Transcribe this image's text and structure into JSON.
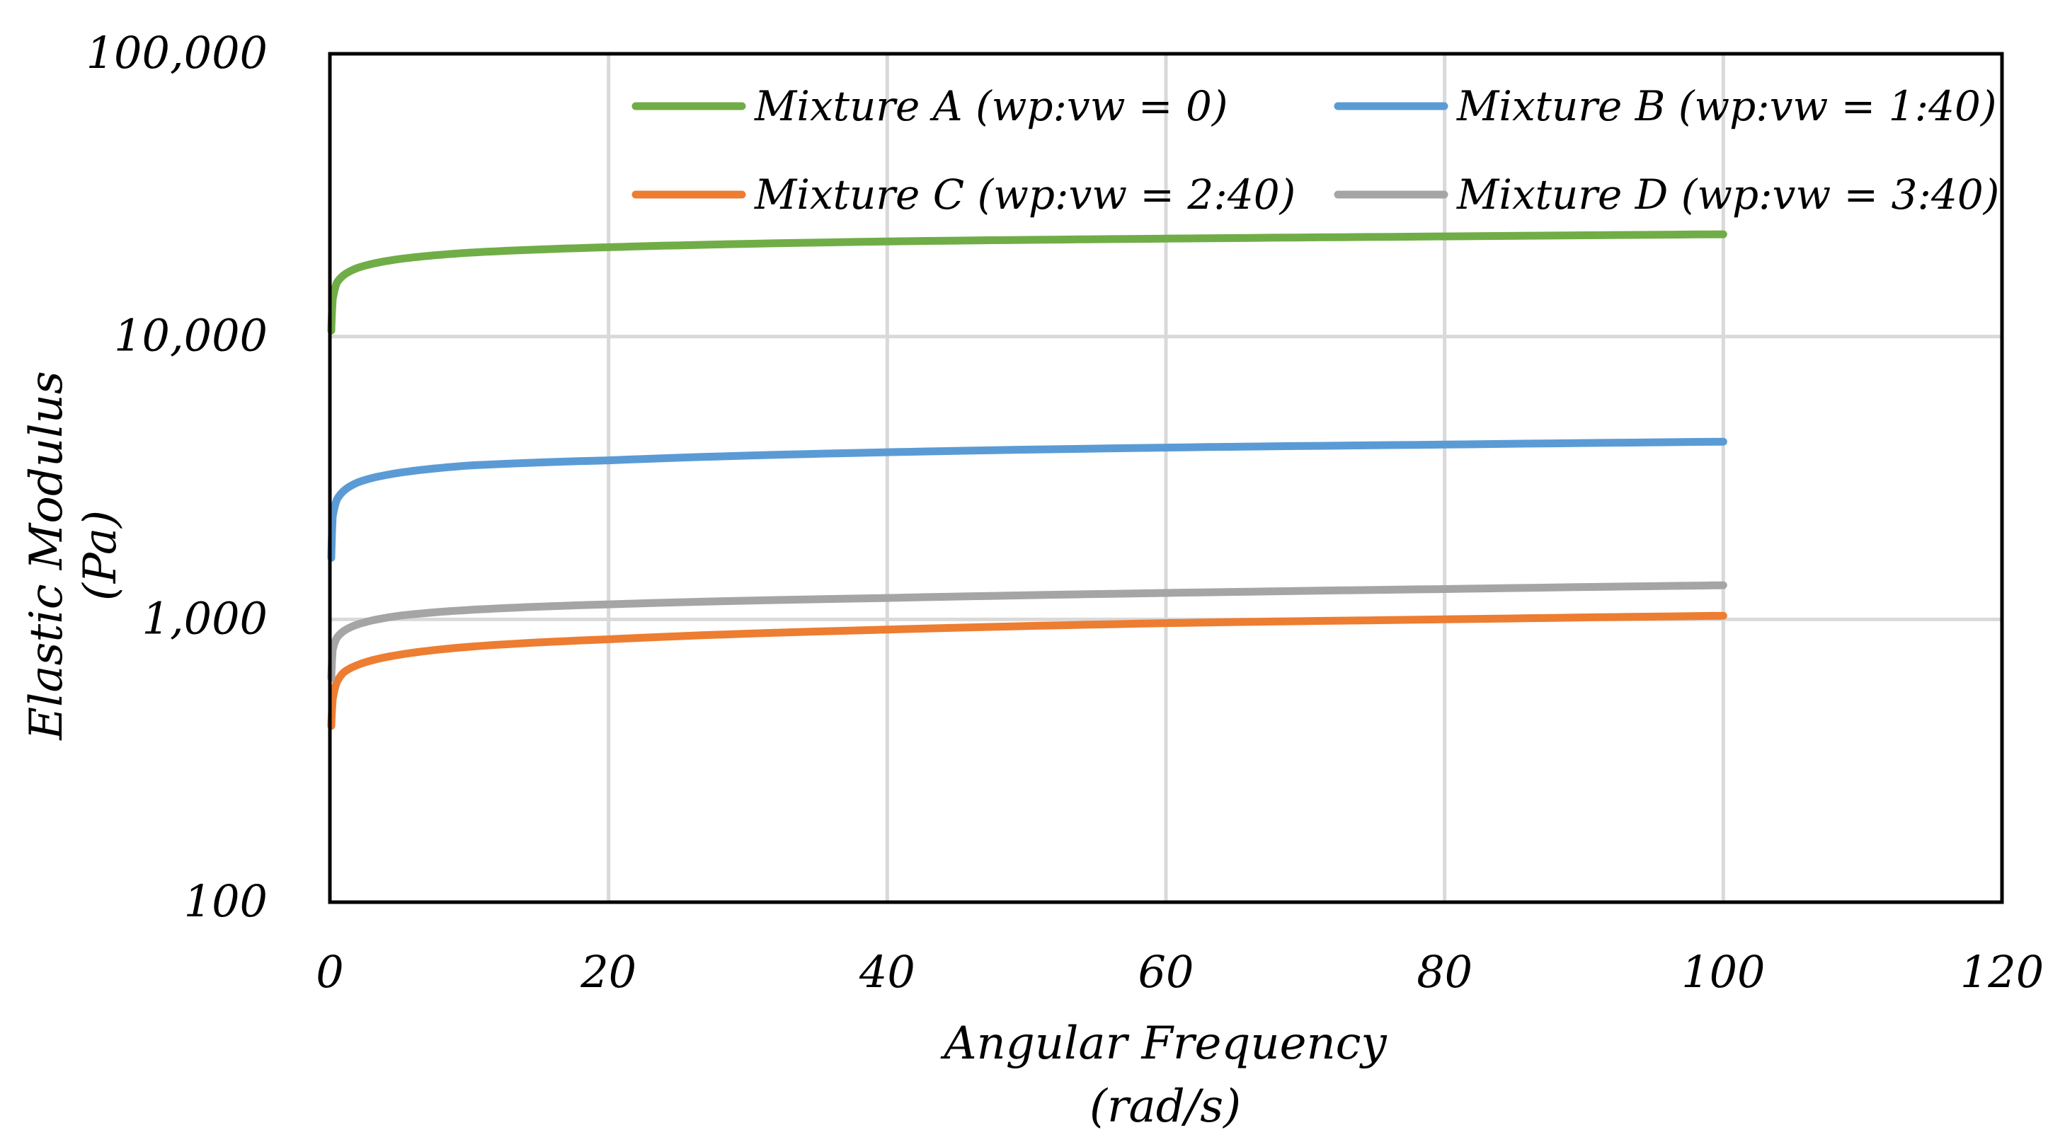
{
  "chart_data": {
    "type": "line",
    "title": "",
    "xlabel": [
      "Angular Frequency",
      "(rad/s)"
    ],
    "ylabel": [
      "Elastic Modulus",
      "(Pa)"
    ],
    "xlim": [
      0,
      120
    ],
    "ylim": [
      100,
      100000
    ],
    "yscale": "log",
    "x_ticks": [
      "0",
      "20",
      "40",
      "60",
      "80",
      "100",
      "120"
    ],
    "y_ticks": [
      "100",
      "1,000",
      "10,000",
      "100,000"
    ],
    "grid": true,
    "legend_position": "top",
    "series": [
      {
        "name": "Mixture A (wp:vw = 0)",
        "color": "#70ad47",
        "x": [
          0.1,
          0.2,
          0.5,
          1,
          2,
          5,
          10,
          20,
          40,
          60,
          80,
          100
        ],
        "y": [
          10500,
          13500,
          15500,
          16500,
          17500,
          18800,
          19800,
          20700,
          21700,
          22200,
          22600,
          23000
        ]
      },
      {
        "name": "Mixture B (wp:vw = 1:40)",
        "color": "#5b9bd5",
        "x": [
          0.1,
          0.2,
          0.5,
          1,
          2,
          5,
          10,
          20,
          40,
          60,
          80,
          100
        ],
        "y": [
          1650,
          2300,
          2650,
          2850,
          3050,
          3300,
          3500,
          3650,
          3900,
          4050,
          4150,
          4250
        ]
      },
      {
        "name": "Mixture C (wp:vw = 2:40)",
        "color": "#ed7d31",
        "x": [
          0.1,
          0.2,
          0.5,
          1,
          2,
          5,
          10,
          20,
          40,
          60,
          80,
          100
        ],
        "y": [
          420,
          520,
          600,
          650,
          690,
          750,
          800,
          850,
          920,
          970,
          1000,
          1030
        ]
      },
      {
        "name": "Mixture D (wp:vw = 3:40)",
        "color": "#a5a5a5",
        "x": [
          0.1,
          0.2,
          0.5,
          1,
          2,
          5,
          10,
          20,
          40,
          60,
          80,
          100
        ],
        "y": [
          620,
          780,
          860,
          910,
          960,
          1030,
          1080,
          1130,
          1190,
          1240,
          1280,
          1320
        ]
      }
    ]
  }
}
